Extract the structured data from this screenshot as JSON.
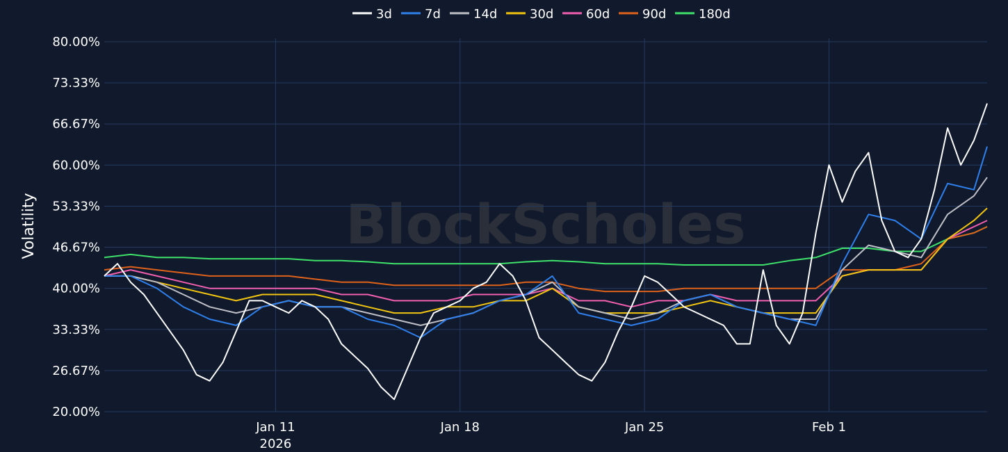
{
  "chart_data": {
    "type": "line",
    "title": "",
    "xlabel": "",
    "ylabel": "Volatility",
    "ylim": [
      20,
      80
    ],
    "xlim": [
      "2026-01-04T12:00",
      "2026-02-07T00:00"
    ],
    "y_ticks": [
      "20.00%",
      "26.67%",
      "33.33%",
      "40.00%",
      "46.67%",
      "53.33%",
      "60.00%",
      "66.67%",
      "73.33%",
      "80.00%"
    ],
    "y_tick_values": [
      20,
      26.67,
      33.33,
      40,
      46.67,
      53.33,
      60,
      66.67,
      73.33,
      80
    ],
    "x_ticks": [
      {
        "label": "Jan 11",
        "sub": "2026",
        "date": "2026-01-11"
      },
      {
        "label": "Jan 18",
        "sub": "",
        "date": "2026-01-18"
      },
      {
        "label": "Jan 25",
        "sub": "",
        "date": "2026-01-25"
      },
      {
        "label": "Feb 1",
        "sub": "",
        "date": "2026-02-01"
      }
    ],
    "grid": true,
    "legend_position": "top-center",
    "watermark": "BlockScholes",
    "series": [
      {
        "name": "3d",
        "color": "#ffffff",
        "x": [
          "2026-01-04T12:00",
          "2026-01-05T00:00",
          "2026-01-05T12:00",
          "2026-01-06T00:00",
          "2026-01-06T12:00",
          "2026-01-07T00:00",
          "2026-01-07T12:00",
          "2026-01-08T00:00",
          "2026-01-08T12:00",
          "2026-01-09T00:00",
          "2026-01-09T12:00",
          "2026-01-10T00:00",
          "2026-01-10T12:00",
          "2026-01-11T00:00",
          "2026-01-11T12:00",
          "2026-01-12T00:00",
          "2026-01-12T12:00",
          "2026-01-13T00:00",
          "2026-01-13T12:00",
          "2026-01-14T00:00",
          "2026-01-14T12:00",
          "2026-01-15T00:00",
          "2026-01-15T12:00",
          "2026-01-16T00:00",
          "2026-01-16T12:00",
          "2026-01-17T00:00",
          "2026-01-17T12:00",
          "2026-01-18T00:00",
          "2026-01-18T12:00",
          "2026-01-19T00:00",
          "2026-01-19T12:00",
          "2026-01-20T00:00",
          "2026-01-20T12:00",
          "2026-01-21T00:00",
          "2026-01-21T12:00",
          "2026-01-22T00:00",
          "2026-01-22T12:00",
          "2026-01-23T00:00",
          "2026-01-23T12:00",
          "2026-01-24T00:00",
          "2026-01-24T12:00",
          "2026-01-25T00:00",
          "2026-01-25T12:00",
          "2026-01-26T00:00",
          "2026-01-26T12:00",
          "2026-01-27T00:00",
          "2026-01-27T12:00",
          "2026-01-28T00:00",
          "2026-01-28T12:00",
          "2026-01-29T00:00",
          "2026-01-29T12:00",
          "2026-01-30T00:00",
          "2026-01-30T12:00",
          "2026-01-31T00:00",
          "2026-01-31T12:00",
          "2026-02-01T00:00",
          "2026-02-01T12:00",
          "2026-02-02T00:00",
          "2026-02-02T12:00",
          "2026-02-03T00:00",
          "2026-02-03T12:00",
          "2026-02-04T00:00",
          "2026-02-04T12:00",
          "2026-02-05T00:00",
          "2026-02-05T12:00",
          "2026-02-06T00:00",
          "2026-02-06T12:00",
          "2026-02-07T00:00"
        ],
        "values": [
          42,
          44,
          41,
          39,
          36,
          33,
          30,
          26,
          25,
          28,
          33,
          38,
          38,
          37,
          36,
          38,
          37,
          35,
          31,
          29,
          27,
          24,
          22,
          27,
          32,
          36,
          37,
          38,
          40,
          41,
          44,
          42,
          38,
          32,
          30,
          28,
          26,
          25,
          28,
          33,
          37,
          42,
          41,
          39,
          37,
          36,
          35,
          34,
          31,
          31,
          43,
          34,
          31,
          36,
          49,
          60,
          54,
          59,
          62,
          51,
          46,
          45,
          48,
          56,
          66,
          60,
          64,
          70
        ]
      },
      {
        "name": "7d",
        "color": "#2f80ed",
        "x": [
          "2026-01-04T12:00",
          "2026-01-05T12:00",
          "2026-01-06T12:00",
          "2026-01-07T12:00",
          "2026-01-08T12:00",
          "2026-01-09T12:00",
          "2026-01-10T12:00",
          "2026-01-11T12:00",
          "2026-01-12T12:00",
          "2026-01-13T12:00",
          "2026-01-14T12:00",
          "2026-01-15T12:00",
          "2026-01-16T12:00",
          "2026-01-17T12:00",
          "2026-01-18T12:00",
          "2026-01-19T12:00",
          "2026-01-20T12:00",
          "2026-01-21T12:00",
          "2026-01-22T12:00",
          "2026-01-23T12:00",
          "2026-01-24T12:00",
          "2026-01-25T12:00",
          "2026-01-26T12:00",
          "2026-01-27T12:00",
          "2026-01-28T12:00",
          "2026-01-29T12:00",
          "2026-01-30T12:00",
          "2026-01-31T12:00",
          "2026-02-01T12:00",
          "2026-02-02T12:00",
          "2026-02-03T12:00",
          "2026-02-04T12:00",
          "2026-02-05T12:00",
          "2026-02-06T12:00",
          "2026-02-07T00:00"
        ],
        "values": [
          42,
          42,
          40,
          37,
          35,
          34,
          37,
          38,
          37,
          37,
          35,
          34,
          32,
          35,
          36,
          38,
          39,
          42,
          36,
          35,
          34,
          35,
          38,
          39,
          37,
          36,
          35,
          34,
          44,
          52,
          51,
          48,
          57,
          56,
          63
        ]
      },
      {
        "name": "14d",
        "color": "#c0c0c8",
        "x": [
          "2026-01-04T12:00",
          "2026-01-05T12:00",
          "2026-01-06T12:00",
          "2026-01-07T12:00",
          "2026-01-08T12:00",
          "2026-01-09T12:00",
          "2026-01-10T12:00",
          "2026-01-11T12:00",
          "2026-01-12T12:00",
          "2026-01-13T12:00",
          "2026-01-14T12:00",
          "2026-01-15T12:00",
          "2026-01-16T12:00",
          "2026-01-17T12:00",
          "2026-01-18T12:00",
          "2026-01-19T12:00",
          "2026-01-20T12:00",
          "2026-01-21T12:00",
          "2026-01-22T12:00",
          "2026-01-23T12:00",
          "2026-01-24T12:00",
          "2026-01-25T12:00",
          "2026-01-26T12:00",
          "2026-01-27T12:00",
          "2026-01-28T12:00",
          "2026-01-29T12:00",
          "2026-01-30T12:00",
          "2026-01-31T12:00",
          "2026-02-01T12:00",
          "2026-02-02T12:00",
          "2026-02-03T12:00",
          "2026-02-04T12:00",
          "2026-02-05T12:00",
          "2026-02-06T12:00",
          "2026-02-07T00:00"
        ],
        "values": [
          42,
          42,
          41,
          39,
          37,
          36,
          37,
          38,
          37,
          37,
          36,
          35,
          34,
          35,
          36,
          38,
          39,
          41,
          37,
          36,
          35,
          36,
          38,
          39,
          37,
          36,
          35,
          35,
          43,
          47,
          46,
          45,
          52,
          55,
          58
        ]
      },
      {
        "name": "30d",
        "color": "#f2c511",
        "x": [
          "2026-01-04T12:00",
          "2026-01-05T12:00",
          "2026-01-06T12:00",
          "2026-01-07T12:00",
          "2026-01-08T12:00",
          "2026-01-09T12:00",
          "2026-01-10T12:00",
          "2026-01-11T12:00",
          "2026-01-12T12:00",
          "2026-01-13T12:00",
          "2026-01-14T12:00",
          "2026-01-15T12:00",
          "2026-01-16T12:00",
          "2026-01-17T12:00",
          "2026-01-18T12:00",
          "2026-01-19T12:00",
          "2026-01-20T12:00",
          "2026-01-21T12:00",
          "2026-01-22T12:00",
          "2026-01-23T12:00",
          "2026-01-24T12:00",
          "2026-01-25T12:00",
          "2026-01-26T12:00",
          "2026-01-27T12:00",
          "2026-01-28T12:00",
          "2026-01-29T12:00",
          "2026-01-30T12:00",
          "2026-01-31T12:00",
          "2026-02-01T12:00",
          "2026-02-02T12:00",
          "2026-02-03T12:00",
          "2026-02-04T12:00",
          "2026-02-05T12:00",
          "2026-02-06T12:00",
          "2026-02-07T00:00"
        ],
        "values": [
          42,
          42,
          41,
          40,
          39,
          38,
          39,
          39,
          39,
          38,
          37,
          36,
          36,
          37,
          37,
          38,
          38,
          40,
          37,
          36,
          36,
          36,
          37,
          38,
          37,
          36,
          36,
          36,
          42,
          43,
          43,
          43,
          48,
          51,
          53
        ]
      },
      {
        "name": "60d",
        "color": "#f25fb0",
        "x": [
          "2026-01-04T12:00",
          "2026-01-05T12:00",
          "2026-01-06T12:00",
          "2026-01-07T12:00",
          "2026-01-08T12:00",
          "2026-01-09T12:00",
          "2026-01-10T12:00",
          "2026-01-11T12:00",
          "2026-01-12T12:00",
          "2026-01-13T12:00",
          "2026-01-14T12:00",
          "2026-01-15T12:00",
          "2026-01-16T12:00",
          "2026-01-17T12:00",
          "2026-01-18T12:00",
          "2026-01-19T12:00",
          "2026-01-20T12:00",
          "2026-01-21T12:00",
          "2026-01-22T12:00",
          "2026-01-23T12:00",
          "2026-01-24T12:00",
          "2026-01-25T12:00",
          "2026-01-26T12:00",
          "2026-01-27T12:00",
          "2026-01-28T12:00",
          "2026-01-29T12:00",
          "2026-01-30T12:00",
          "2026-01-31T12:00",
          "2026-02-01T12:00",
          "2026-02-02T12:00",
          "2026-02-03T12:00",
          "2026-02-04T12:00",
          "2026-02-05T12:00",
          "2026-02-06T12:00",
          "2026-02-07T00:00"
        ],
        "values": [
          42,
          43,
          42,
          41,
          40,
          40,
          40,
          40,
          40,
          39,
          39,
          38,
          38,
          38,
          39,
          39,
          39,
          40,
          38,
          38,
          37,
          38,
          38,
          39,
          38,
          38,
          38,
          38,
          42,
          43,
          43,
          43,
          48,
          50,
          51
        ]
      },
      {
        "name": "90d",
        "color": "#e0621a",
        "x": [
          "2026-01-04T12:00",
          "2026-01-05T12:00",
          "2026-01-06T12:00",
          "2026-01-07T12:00",
          "2026-01-08T12:00",
          "2026-01-09T12:00",
          "2026-01-10T12:00",
          "2026-01-11T12:00",
          "2026-01-12T12:00",
          "2026-01-13T12:00",
          "2026-01-14T12:00",
          "2026-01-15T12:00",
          "2026-01-16T12:00",
          "2026-01-17T12:00",
          "2026-01-18T12:00",
          "2026-01-19T12:00",
          "2026-01-20T12:00",
          "2026-01-21T12:00",
          "2026-01-22T12:00",
          "2026-01-23T12:00",
          "2026-01-24T12:00",
          "2026-01-25T12:00",
          "2026-01-26T12:00",
          "2026-01-27T12:00",
          "2026-01-28T12:00",
          "2026-01-29T12:00",
          "2026-01-30T12:00",
          "2026-01-31T12:00",
          "2026-02-01T12:00",
          "2026-02-02T12:00",
          "2026-02-03T12:00",
          "2026-02-04T12:00",
          "2026-02-05T12:00",
          "2026-02-06T12:00",
          "2026-02-07T00:00"
        ],
        "values": [
          43,
          43.5,
          43,
          42.5,
          42,
          42,
          42,
          42,
          41.5,
          41,
          41,
          40.5,
          40.5,
          40.5,
          40.5,
          40.5,
          41,
          41,
          40,
          39.5,
          39.5,
          39.5,
          40,
          40,
          40,
          40,
          40,
          40,
          43,
          43,
          43,
          44,
          48,
          49,
          50
        ]
      },
      {
        "name": "180d",
        "color": "#3ee16a",
        "x": [
          "2026-01-04T12:00",
          "2026-01-05T12:00",
          "2026-01-06T12:00",
          "2026-01-07T12:00",
          "2026-01-08T12:00",
          "2026-01-09T12:00",
          "2026-01-10T12:00",
          "2026-01-11T12:00",
          "2026-01-12T12:00",
          "2026-01-13T12:00",
          "2026-01-14T12:00",
          "2026-01-15T12:00",
          "2026-01-16T12:00",
          "2026-01-17T12:00",
          "2026-01-18T12:00",
          "2026-01-19T12:00",
          "2026-01-20T12:00",
          "2026-01-21T12:00",
          "2026-01-22T12:00",
          "2026-01-23T12:00",
          "2026-01-24T12:00",
          "2026-01-25T12:00",
          "2026-01-26T12:00",
          "2026-01-27T12:00",
          "2026-01-28T12:00",
          "2026-01-29T12:00",
          "2026-01-30T12:00",
          "2026-01-31T12:00",
          "2026-02-01T12:00",
          "2026-02-02T12:00",
          "2026-02-03T12:00",
          "2026-02-04T12:00",
          "2026-02-05T12:00",
          "2026-02-06T12:00",
          "2026-02-07T00:00"
        ],
        "values": [
          45,
          45.5,
          45,
          45,
          44.8,
          44.8,
          44.8,
          44.8,
          44.5,
          44.5,
          44.3,
          44,
          44,
          44,
          44,
          44,
          44.3,
          44.5,
          44.3,
          44,
          44,
          44,
          43.8,
          43.8,
          43.8,
          43.8,
          44.5,
          45,
          46.5,
          46.5,
          46,
          46,
          48,
          49,
          50
        ]
      }
    ]
  }
}
